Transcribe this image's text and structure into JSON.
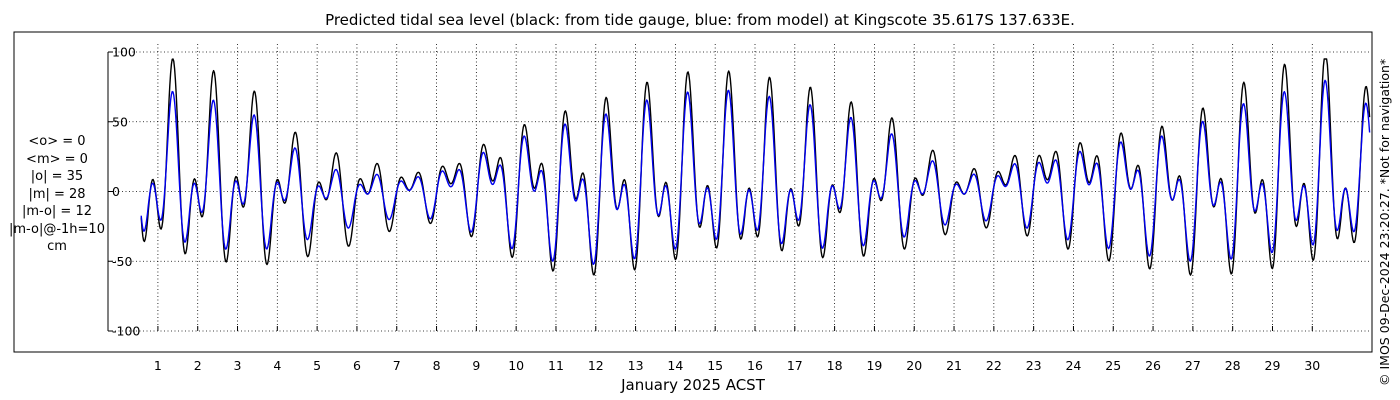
{
  "title": "Predicted tidal sea level (black: from tide gauge, blue: from model) at Kingscote 35.617S 137.633E.",
  "stats": [
    "<o> = 0",
    "<m> = 0",
    "|o| = 35",
    "|m| = 28",
    "|m-o| = 12",
    "|m-o|@-1h=10",
    "cm"
  ],
  "copyright": "© IMOS 09-Dec-2024 23:20:27. *Not for navigation*",
  "chart_data": {
    "type": "line",
    "title": "Predicted tidal sea level (black: from tide gauge, blue: from model) at Kingscote 35.617S 137.633E.",
    "xlabel": "January 2025 ACST",
    "ylabel": "",
    "xlim": [
      0.5,
      31.5
    ],
    "ylim": [
      -100,
      100
    ],
    "yticks": [
      -100,
      -50,
      0,
      50,
      100
    ],
    "xticks": [
      1,
      2,
      3,
      4,
      5,
      6,
      7,
      8,
      9,
      10,
      11,
      12,
      13,
      14,
      15,
      16,
      17,
      18,
      19,
      20,
      21,
      22,
      23,
      24,
      25,
      26,
      27,
      28,
      29,
      30
    ],
    "grid": true,
    "colors": {
      "gauge": "#000000",
      "model": "#0000ee"
    },
    "amplitude_by_day": {
      "day": [
        0.7,
        1.4,
        2.4,
        3.4,
        4.4,
        5.4,
        6.4,
        7.4,
        8.4,
        9.4,
        10.4,
        11.4,
        12.4,
        13.4,
        14.4,
        15.4,
        16.4,
        17.4,
        18.4,
        19.4,
        20.4,
        21.4,
        22.4,
        23.4,
        24.4,
        25.4,
        26.4,
        27.4,
        28.4,
        29.4,
        30.4,
        31.4
      ],
      "gauge_amplitude": [
        74,
        72,
        68,
        62,
        45,
        35,
        28,
        18,
        25,
        40,
        52,
        58,
        63,
        66,
        68,
        67,
        65,
        62,
        55,
        48,
        32,
        20,
        28,
        36,
        44,
        48,
        52,
        60,
        68,
        74,
        78,
        60
      ],
      "gauge_offset": [
        14,
        12,
        10,
        6,
        -2,
        -4,
        -2,
        0,
        4,
        6,
        4,
        2,
        2,
        6,
        8,
        8,
        6,
        4,
        4,
        4,
        0,
        -2,
        4,
        6,
        4,
        2,
        -2,
        0,
        6,
        8,
        10,
        4
      ],
      "model_amplitude": [
        56,
        55,
        53,
        48,
        34,
        22,
        18,
        14,
        22,
        34,
        44,
        50,
        53,
        56,
        57,
        57,
        55,
        52,
        46,
        38,
        24,
        16,
        22,
        30,
        36,
        40,
        44,
        50,
        55,
        58,
        62,
        50
      ],
      "model_offset": [
        10,
        8,
        6,
        4,
        -2,
        -4,
        -2,
        0,
        2,
        4,
        2,
        0,
        0,
        4,
        6,
        6,
        4,
        3,
        3,
        3,
        0,
        -2,
        3,
        4,
        3,
        2,
        -2,
        0,
        4,
        6,
        8,
        4
      ]
    },
    "series": [
      {
        "name": "black: from tide gauge",
        "color": "#000000"
      },
      {
        "name": "blue: from model",
        "color": "#0000ee"
      }
    ]
  }
}
